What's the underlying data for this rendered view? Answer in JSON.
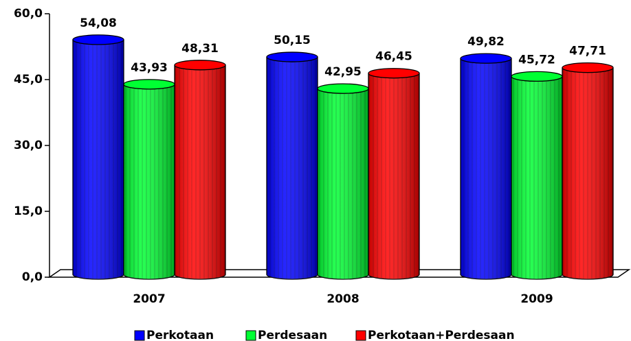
{
  "chart_data": {
    "type": "bar",
    "categories": [
      "2007",
      "2008",
      "2009"
    ],
    "series": [
      {
        "name": "Perkotaan",
        "color": "#0000ff",
        "values": [
          54.08,
          50.15,
          49.82
        ],
        "value_labels": [
          "54,08",
          "50,15",
          "49,82"
        ]
      },
      {
        "name": "Perdesaan",
        "color": "#00ff33",
        "values": [
          43.93,
          42.95,
          45.72
        ],
        "value_labels": [
          "43,93",
          "42,95",
          "45,72"
        ]
      },
      {
        "name": "Perkotaan+Perdesaan",
        "color": "#ff0000",
        "values": [
          48.31,
          46.45,
          47.71
        ],
        "value_labels": [
          "48,31",
          "46,45",
          "47,71"
        ]
      }
    ],
    "ylim": [
      0,
      60
    ],
    "yticks": [
      {
        "value": 0,
        "label": "0,0"
      },
      {
        "value": 15,
        "label": "15,0"
      },
      {
        "value": 30,
        "label": "30,0"
      },
      {
        "value": 45,
        "label": "45,0"
      },
      {
        "value": 60,
        "label": "60,0"
      }
    ],
    "legend": "bottom"
  }
}
